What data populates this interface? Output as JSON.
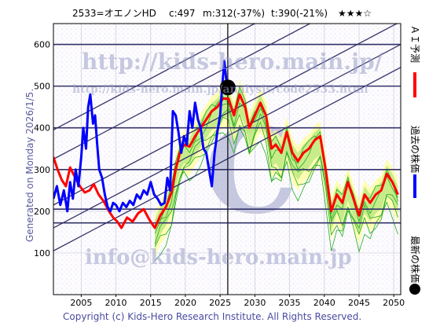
{
  "header": {
    "code_name": "2533=オエノンHD",
    "c_label": "c:497",
    "m_label": "m:312(-37%)",
    "t_label": "t:390(-21%)",
    "rating": "★★★☆"
  },
  "watermarks": {
    "url_large": "http://kids-hero.main.jp/",
    "url_small": "http://kids-hero.main.jp/analysis/code2533.html",
    "email": "info@kids-hero.main.jp"
  },
  "generated_text": "Generated on Monday 2026/1/5.",
  "copyright": "Copyright (c) Kids-Hero Research Institute. All Rights Reserved.",
  "legend": [
    {
      "label": "ＡＩ予測",
      "color": "#ff0000"
    },
    {
      "label": "過去の株価",
      "color": "#0000ff"
    },
    {
      "label": "最新の株価",
      "color": "#000000"
    }
  ],
  "colors": {
    "prediction": "#ff0000",
    "history": "#0000ff",
    "latest_dot": "#000000",
    "similar_lines": "#22aa22",
    "similar_fill": "#99dd66",
    "band_fill": "#ffff99",
    "trend_lines": "#33336a"
  },
  "chart_data": {
    "type": "line",
    "title": "",
    "xlabel": "",
    "ylabel": "",
    "xlim": [
      2001,
      2051
    ],
    "ylim": [
      0,
      650
    ],
    "x_ticks": [
      2005,
      2010,
      2015,
      2020,
      2025,
      2030,
      2035,
      2040,
      2045,
      2050
    ],
    "y_ticks": [
      100,
      200,
      300,
      400,
      500,
      600
    ],
    "horizontal_levels": [
      600,
      500,
      400,
      300,
      205,
      172
    ],
    "current_year": 2026.1,
    "latest_price": 497,
    "trend_lines": [
      {
        "x": [
          2001,
          2051
        ],
        "y": [
          105,
          545
        ]
      },
      {
        "x": [
          2001,
          2051
        ],
        "y": [
          160,
          600
        ]
      },
      {
        "x": [
          2001,
          2051
        ],
        "y": [
          215,
          655
        ]
      },
      {
        "x": [
          2001,
          2051
        ],
        "y": [
          325,
          765
        ]
      },
      {
        "x": [
          2001,
          2051
        ],
        "y": [
          395,
          835
        ]
      }
    ],
    "series": [
      {
        "name": "過去の株価",
        "x": [
          2001.0,
          2001.5,
          2002.0,
          2002.5,
          2003.0,
          2003.4,
          2003.8,
          2004.2,
          2004.6,
          2005.0,
          2005.3,
          2005.7,
          2006.0,
          2006.3,
          2006.7,
          2007.0,
          2007.3,
          2007.6,
          2008.0,
          2008.4,
          2008.8,
          2009.2,
          2009.6,
          2010.0,
          2010.5,
          2011.0,
          2011.5,
          2012.0,
          2012.5,
          2013.0,
          2013.5,
          2014.0,
          2014.5,
          2015.0,
          2015.5,
          2016.0,
          2016.5,
          2017.0,
          2017.4,
          2017.8,
          2018.2,
          2018.6,
          2019.0,
          2019.4,
          2019.8,
          2020.2,
          2020.6,
          2021.0,
          2021.4,
          2021.8,
          2022.2,
          2022.6,
          2023.0,
          2023.4,
          2023.8,
          2024.2,
          2024.6,
          2025.0,
          2025.3,
          2025.6,
          2026.0
        ],
        "y": [
          230,
          260,
          215,
          250,
          200,
          270,
          230,
          300,
          260,
          330,
          400,
          350,
          450,
          480,
          410,
          430,
          360,
          300,
          280,
          240,
          210,
          200,
          220,
          215,
          200,
          220,
          210,
          225,
          215,
          240,
          230,
          250,
          240,
          270,
          240,
          230,
          215,
          220,
          280,
          250,
          440,
          430,
          390,
          340,
          380,
          360,
          440,
          400,
          460,
          420,
          400,
          350,
          340,
          300,
          260,
          340,
          390,
          430,
          500,
          560,
          497
        ]
      },
      {
        "name": "ＡＩ予測",
        "x": [
          2001.0,
          2001.6,
          2002.2,
          2002.8,
          2003.4,
          2004.0,
          2004.8,
          2005.5,
          2006.2,
          2006.8,
          2007.5,
          2008.2,
          2009.0,
          2009.6,
          2010.2,
          2010.8,
          2011.6,
          2012.4,
          2013.2,
          2014.0,
          2014.8,
          2015.6,
          2016.4,
          2017.2,
          2018.0,
          2018.6,
          2019.2,
          2019.8,
          2020.6,
          2021.4,
          2022.2,
          2023.0,
          2023.8,
          2024.6,
          2025.4,
          2026.2,
          2027.0,
          2027.8,
          2028.6,
          2029.2,
          2030.0,
          2030.8,
          2031.6,
          2032.4,
          2033.0,
          2033.8,
          2034.6,
          2035.4,
          2036.2,
          2037.0,
          2037.8,
          2038.6,
          2039.4,
          2040.2,
          2041.0,
          2041.8,
          2042.6,
          2043.4,
          2044.2,
          2045.0,
          2045.8,
          2046.6,
          2047.4,
          2048.2,
          2049.0,
          2049.8,
          2050.6
        ],
        "y": [
          330,
          300,
          275,
          260,
          305,
          285,
          260,
          245,
          250,
          265,
          240,
          225,
          200,
          185,
          175,
          160,
          185,
          175,
          195,
          205,
          180,
          160,
          190,
          210,
          245,
          300,
          340,
          360,
          355,
          380,
          400,
          420,
          440,
          450,
          470,
          470,
          430,
          480,
          450,
          400,
          430,
          460,
          430,
          350,
          360,
          340,
          390,
          340,
          320,
          340,
          350,
          370,
          380,
          300,
          200,
          240,
          220,
          270,
          230,
          190,
          240,
          220,
          240,
          250,
          290,
          270,
          240
        ]
      }
    ]
  }
}
